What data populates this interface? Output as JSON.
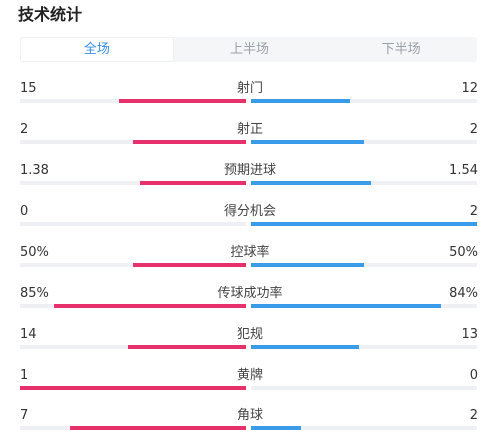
{
  "header": {
    "title": "技术统计"
  },
  "tabs": [
    {
      "label": "全场",
      "active": true
    },
    {
      "label": "上半场",
      "active": false
    },
    {
      "label": "下半场",
      "active": false
    }
  ],
  "colors": {
    "home": "#e8306d",
    "away": "#3a9be8",
    "track": "#eef0f3",
    "accent": "#3a8ee6"
  },
  "stats": [
    {
      "label": "射门",
      "home": "15",
      "away": "12",
      "home_ratio": 0.56,
      "away_ratio": 0.44
    },
    {
      "label": "射正",
      "home": "2",
      "away": "2",
      "home_ratio": 0.5,
      "away_ratio": 0.5
    },
    {
      "label": "预期进球",
      "home": "1.38",
      "away": "1.54",
      "home_ratio": 0.47,
      "away_ratio": 0.53
    },
    {
      "label": "得分机会",
      "home": "0",
      "away": "2",
      "home_ratio": 0.0,
      "away_ratio": 1.0
    },
    {
      "label": "控球率",
      "home": "50%",
      "away": "50%",
      "home_ratio": 0.5,
      "away_ratio": 0.5
    },
    {
      "label": "传球成功率",
      "home": "85%",
      "away": "84%",
      "home_ratio": 0.85,
      "away_ratio": 0.84
    },
    {
      "label": "犯规",
      "home": "14",
      "away": "13",
      "home_ratio": 0.52,
      "away_ratio": 0.48
    },
    {
      "label": "黄牌",
      "home": "1",
      "away": "0",
      "home_ratio": 1.0,
      "away_ratio": 0.0
    },
    {
      "label": "角球",
      "home": "7",
      "away": "2",
      "home_ratio": 0.78,
      "away_ratio": 0.22
    }
  ]
}
